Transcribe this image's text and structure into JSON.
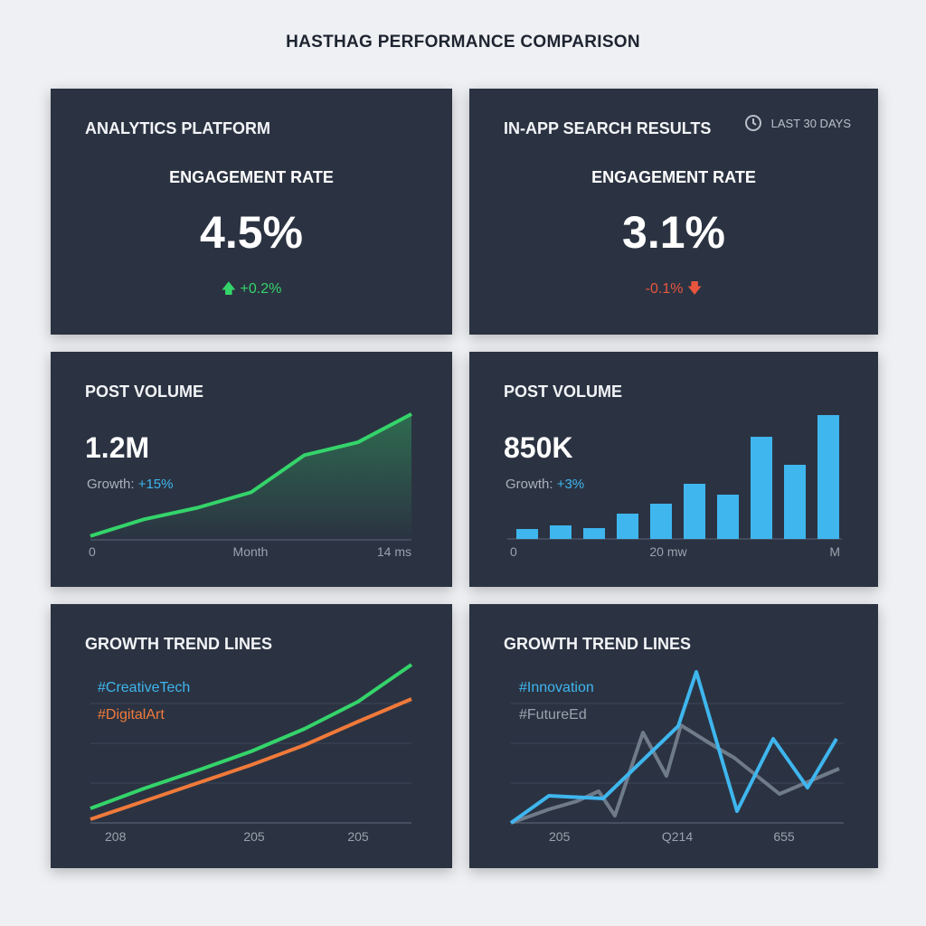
{
  "title": "HASTHAG PERFORMANCE COMPARISON",
  "colors": {
    "green": "#34d46a",
    "red": "#e8553e",
    "blue": "#3fb6ee",
    "orange": "#f07a3a",
    "gray": "#7d8896"
  },
  "cards": {
    "a": {
      "title": "ANALYTICS PLATFORM",
      "label": "ENGAGEMENT RATE",
      "value": "4.5%",
      "delta": "+0.2%",
      "delta_icon": "arrow-up-icon"
    },
    "b": {
      "title": "IN-APP SEARCH RESULTS",
      "label": "ENGAGEMENT RATE",
      "value": "3.1%",
      "delta": "-0.1%",
      "delta_icon": "arrow-down-icon",
      "time_icon": "clock-icon",
      "time_range": "LAST 30 DAYS"
    },
    "c": {
      "title": "POST VOLUME",
      "value": "1.2M",
      "growth_label": "Growth:",
      "growth": "+15%"
    },
    "d": {
      "title": "POST VOLUME",
      "value": "850K",
      "growth_label": "Growth:",
      "growth": "+3%"
    },
    "e": {
      "title": "GROWTH TREND LINES"
    },
    "f": {
      "title": "GROWTH TREND LINES"
    }
  },
  "chart_data": [
    {
      "type": "area",
      "x_ticks": [
        "0",
        "Month",
        "14 ms"
      ],
      "values": [
        3,
        16,
        25,
        37,
        66,
        76,
        98
      ],
      "ylim": [
        0,
        100
      ],
      "grid": false
    },
    {
      "type": "bar",
      "x_ticks": [
        "0",
        "20 mw",
        "M"
      ],
      "values": [
        11,
        15,
        12,
        28,
        39,
        61,
        49,
        113,
        82,
        137
      ],
      "ylim": [
        0,
        140
      ],
      "grid": false
    },
    {
      "type": "line",
      "x_ticks": [
        "208",
        "205",
        "205"
      ],
      "series": [
        {
          "name": "#CreativeTech",
          "color": "#34d46a",
          "values": [
            16,
            38,
            58,
            79,
            104,
            134,
            175
          ]
        },
        {
          "name": "#DigitalArt",
          "color": "#f07a3a",
          "values": [
            4,
            24,
            44,
            64,
            86,
            112,
            137
          ]
        }
      ],
      "ylim": [
        0,
        175
      ],
      "grid": true
    },
    {
      "type": "line",
      "x_ticks": [
        "205",
        "Q214",
        "655"
      ],
      "series": [
        {
          "name": "#Innovation",
          "color": "#3fb6ee",
          "x": [
            0,
            42,
            102,
            185,
            205,
            228,
            250,
            290,
            328,
            360
          ],
          "values": [
            0,
            30,
            27,
            107,
            167,
            88,
            13,
            93,
            39,
            93
          ]
        },
        {
          "name": "#FutureEd",
          "color": "#7d8896",
          "x": [
            0,
            42,
            73,
            97,
            115,
            146,
            172,
            188,
            228,
            247,
            297,
            330,
            363
          ],
          "values": [
            0,
            15,
            24,
            35,
            8,
            100,
            52,
            108,
            83,
            72,
            32,
            46,
            60
          ]
        }
      ],
      "ylim": [
        0,
        175
      ],
      "grid": true
    }
  ]
}
